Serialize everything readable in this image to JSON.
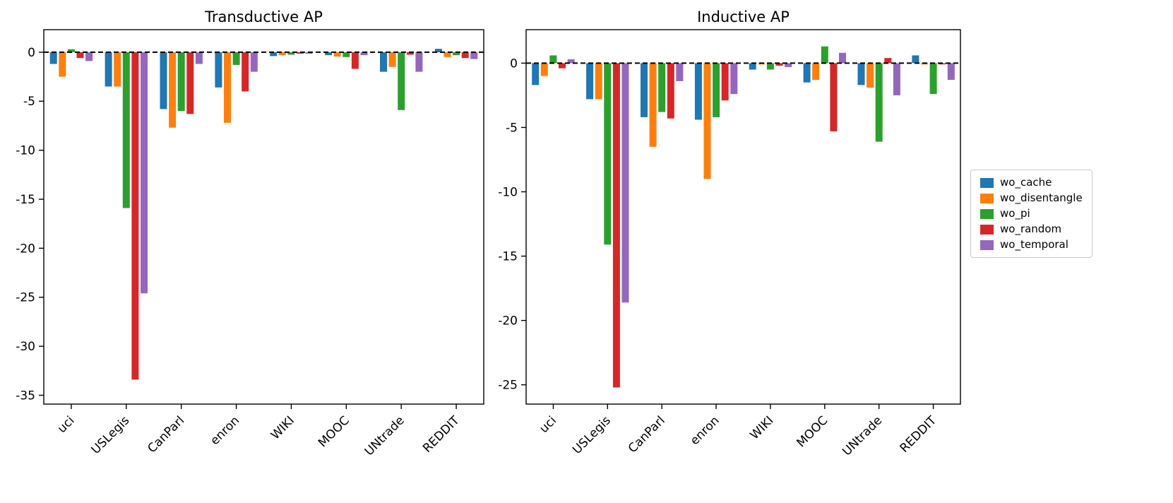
{
  "figure": {
    "background": "#ffffff"
  },
  "legend": {
    "items": [
      {
        "label": "wo_cache",
        "color": "#1f77b4"
      },
      {
        "label": "wo_disentangle",
        "color": "#ff7f0e"
      },
      {
        "label": "wo_pi",
        "color": "#2ca02c"
      },
      {
        "label": "wo_random",
        "color": "#d62728"
      },
      {
        "label": "wo_temporal",
        "color": "#9467bd"
      }
    ]
  },
  "chart_data": [
    {
      "type": "bar",
      "title": "Transductive AP",
      "categories": [
        "uci",
        "USLegis",
        "CanParl",
        "enron",
        "WIKI",
        "MOOC",
        "UNtrade",
        "REDDIT"
      ],
      "series": [
        {
          "name": "wo_cache",
          "color": "#1f77b4",
          "values": [
            -1.2,
            -3.5,
            -5.8,
            -3.6,
            -0.4,
            -0.3,
            -2.0,
            0.35
          ]
        },
        {
          "name": "wo_disentangle",
          "color": "#ff7f0e",
          "values": [
            -2.5,
            -3.5,
            -7.7,
            -7.2,
            -0.3,
            -0.45,
            -1.5,
            -0.5
          ]
        },
        {
          "name": "wo_pi",
          "color": "#2ca02c",
          "values": [
            0.3,
            -15.9,
            -6.0,
            -1.3,
            -0.25,
            -0.5,
            -5.9,
            -0.3
          ]
        },
        {
          "name": "wo_random",
          "color": "#d62728",
          "values": [
            -0.6,
            -33.4,
            -6.3,
            -4.0,
            -0.15,
            -1.7,
            -0.25,
            -0.6
          ]
        },
        {
          "name": "wo_temporal",
          "color": "#9467bd",
          "values": [
            -0.9,
            -24.6,
            -1.2,
            -2.0,
            -0.15,
            -0.3,
            -2.0,
            -0.7
          ]
        }
      ],
      "ylim": [
        -35.9,
        2.3
      ],
      "yticks": [
        0,
        -5,
        -10,
        -15,
        -20,
        -25,
        -30,
        -35
      ],
      "zero_line": true,
      "grid": false,
      "x_tick_rotation": 45
    },
    {
      "type": "bar",
      "title": "Inductive AP",
      "categories": [
        "uci",
        "USLegis",
        "CanParl",
        "enron",
        "WIKI",
        "MOOC",
        "UNtrade",
        "REDDIT"
      ],
      "series": [
        {
          "name": "wo_cache",
          "color": "#1f77b4",
          "values": [
            -1.7,
            -2.8,
            -4.2,
            -4.4,
            -0.5,
            -1.5,
            -1.7,
            0.6
          ]
        },
        {
          "name": "wo_disentangle",
          "color": "#ff7f0e",
          "values": [
            -1.0,
            -2.8,
            -6.5,
            -9.0,
            -0.1,
            -1.3,
            -1.9,
            -0.1
          ]
        },
        {
          "name": "wo_pi",
          "color": "#2ca02c",
          "values": [
            0.6,
            -14.1,
            -3.8,
            -4.2,
            -0.5,
            1.3,
            -6.1,
            -2.4
          ]
        },
        {
          "name": "wo_random",
          "color": "#d62728",
          "values": [
            -0.4,
            -25.2,
            -4.3,
            -2.9,
            -0.2,
            -5.3,
            0.4,
            -0.1
          ]
        },
        {
          "name": "wo_temporal",
          "color": "#9467bd",
          "values": [
            0.3,
            -18.6,
            -1.4,
            -2.4,
            -0.3,
            0.8,
            -2.5,
            -1.3
          ]
        }
      ],
      "ylim": [
        -26.5,
        2.6
      ],
      "yticks": [
        0,
        -5,
        -10,
        -15,
        -20,
        -25
      ],
      "zero_line": true,
      "grid": false,
      "x_tick_rotation": 45
    }
  ]
}
